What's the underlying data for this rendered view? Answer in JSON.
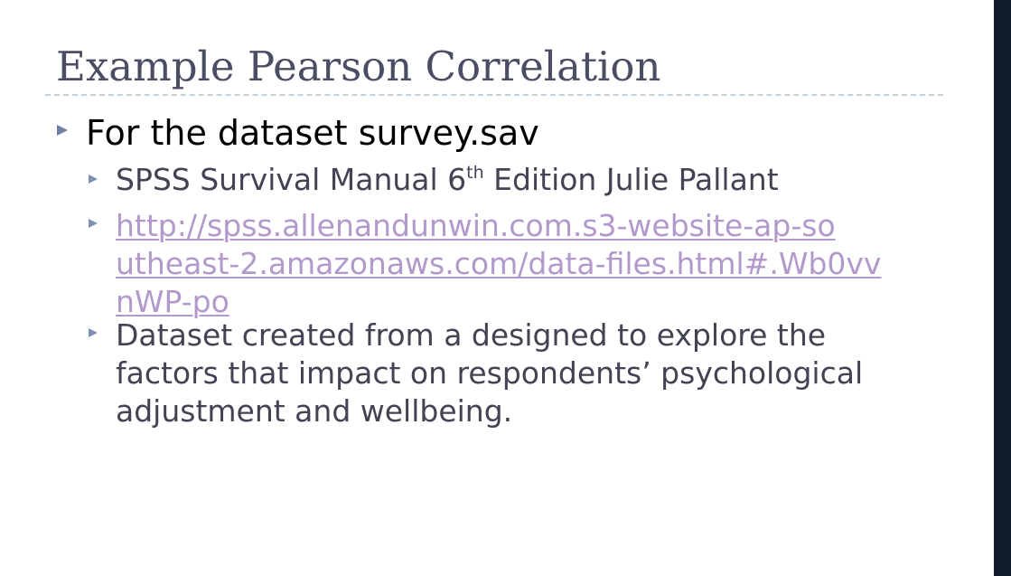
{
  "slide": {
    "title": "Example Pearson Correlation",
    "bullet_l1": "For the dataset survey.sav",
    "sub_bullets": {
      "manual": {
        "before_sup": "SPSS Survival Manual 6",
        "sup": "th",
        "after_sup": " Edition Julie Pallant"
      },
      "link": {
        "line1": "http://spss.allenandunwin.com.s3-website-ap-so",
        "line2": "utheast-2.amazonaws.com/data-files.html#.Wb0vv",
        "line3": "nWP-po"
      },
      "description": "Dataset created from a designed to explore the factors that impact on respondents’ psychological adjustment and wellbeing."
    }
  },
  "colors": {
    "title": "#4a4d63",
    "body_text": "#424353",
    "link": "#b299cc",
    "bullet": "#6f7ea0",
    "right_bar": "#0f1b2b",
    "rule": "#c3d2da"
  }
}
